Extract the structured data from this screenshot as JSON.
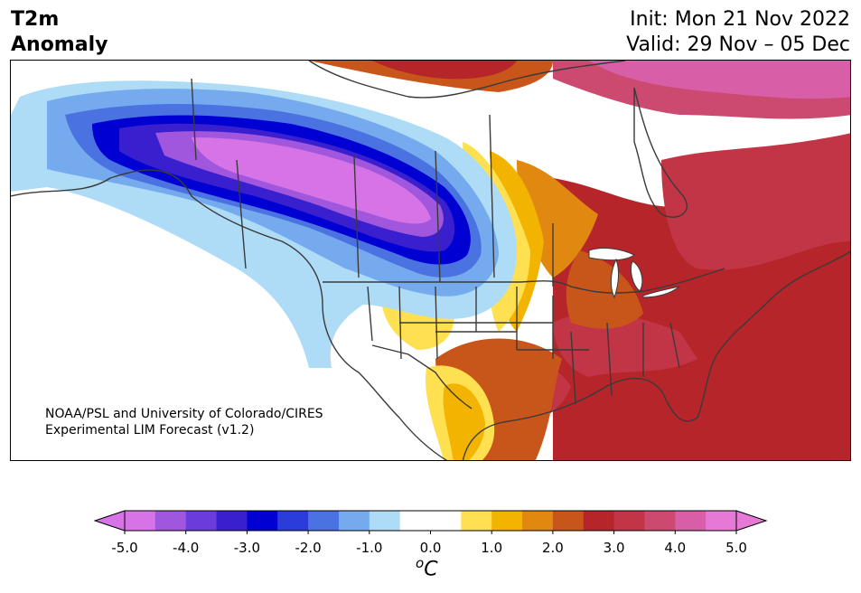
{
  "header": {
    "title_line1": "T2m",
    "title_line2": "Anomaly",
    "init_text": "Init: Mon 21 Nov 2022",
    "valid_text": "Valid: 29 Nov – 05 Dec"
  },
  "map": {
    "credit_line1": "NOAA/PSL and University of Colorado/CIRES",
    "credit_line2": "Experimental LIM Forecast (v1.2)",
    "region": "North America",
    "features": [
      "coastlines",
      "country-borders",
      "us-state-borders",
      "canadian-province-borders"
    ]
  },
  "colorbar": {
    "unit_base": "C",
    "unit_sup": "o",
    "tick_labels": [
      "-5.0",
      "-4.0",
      "-3.0",
      "-2.0",
      "-1.0",
      "0.0",
      "1.0",
      "2.0",
      "3.0",
      "4.0",
      "5.0"
    ],
    "bin_colors": [
      "#d673e6",
      "#a056dd",
      "#6c3bdc",
      "#3a1fcf",
      "#0000d2",
      "#2a3cd9",
      "#4a72e0",
      "#76aaee",
      "#aedcf7",
      "#ffffff",
      "#ffffff",
      "#ffe050",
      "#f2b400",
      "#e0880f",
      "#c8561a",
      "#b5252a",
      "#c23546",
      "#cc4a70",
      "#d85ea8",
      "#e679d6"
    ],
    "extend_min_color": "#d673e6",
    "extend_max_color": "#e679d6"
  },
  "anomaly_colors": {
    "cold_strong": "#d673e6",
    "cold_1": "#a056dd",
    "cold_2": "#3a1fcf",
    "cold_3": "#0000d2",
    "cold_4": "#4a72e0",
    "cold_5": "#76aaee",
    "cold_6": "#aedcf7",
    "warm_1": "#ffe050",
    "warm_2": "#f2b400",
    "warm_3": "#e0880f",
    "warm_4": "#c8561a",
    "warm_5": "#b5252a",
    "warm_6": "#c23546",
    "warm_7": "#cc4a70",
    "warm_8": "#d85ea8"
  }
}
